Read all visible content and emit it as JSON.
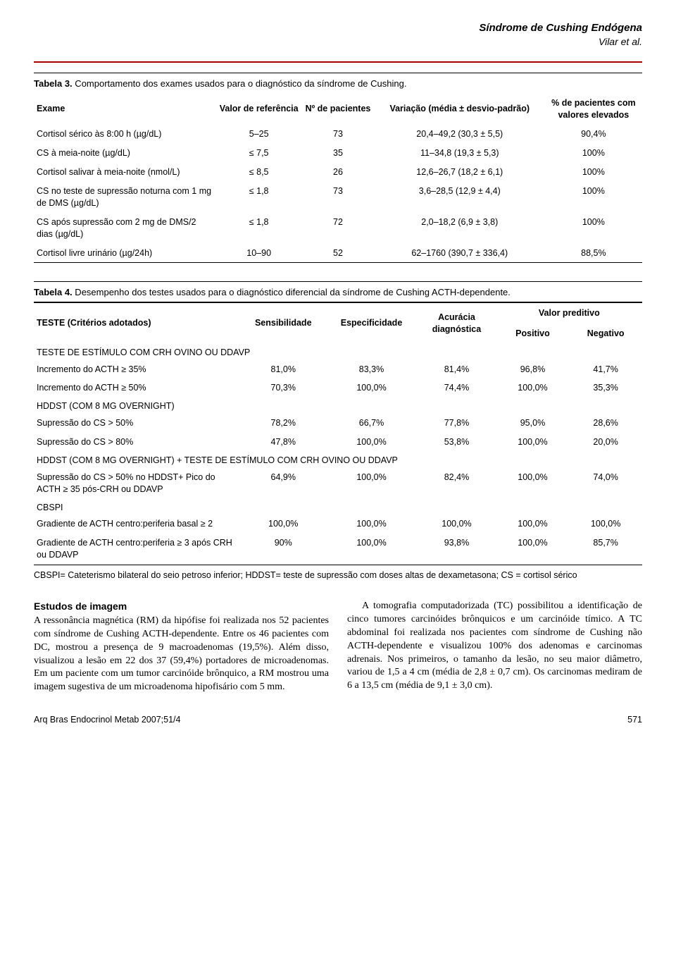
{
  "header": {
    "title": "Síndrome de Cushing Endógena",
    "authors": "Vilar et al."
  },
  "table3": {
    "caption_bold": "Tabela 3.",
    "caption_rest": " Comportamento dos exames usados para o diagnóstico da síndrome de Cushing.",
    "headers": {
      "exame": "Exame",
      "valor": "Valor de referência",
      "n": "Nº de pacientes",
      "variacao": "Variação (média ± desvio-padrão)",
      "pct": "% de pacientes com valores elevados"
    },
    "rows": [
      {
        "exame": "Cortisol sérico às 8:00 h (µg/dL)",
        "valor": "5–25",
        "n": "73",
        "var": "20,4–49,2 (30,3 ± 5,5)",
        "pct": "90,4%"
      },
      {
        "exame": "CS à meia-noite (µg/dL)",
        "valor": "≤ 7,5",
        "n": "35",
        "var": "11–34,8 (19,3 ± 5,3)",
        "pct": "100%"
      },
      {
        "exame": "Cortisol salivar à meia-noite (nmol/L)",
        "valor": "≤ 8,5",
        "n": "26",
        "var": "12,6–26,7 (18,2 ± 6,1)",
        "pct": "100%"
      },
      {
        "exame": "CS no teste de supressão noturna com 1 mg de DMS (µg/dL)",
        "valor": "≤ 1,8",
        "n": "73",
        "var": "3,6–28,5 (12,9 ± 4,4)",
        "pct": "100%"
      },
      {
        "exame": "CS após supressão com 2 mg de DMS/2 dias (µg/dL)",
        "valor": "≤ 1,8",
        "n": "72",
        "var": "2,0–18,2 (6,9 ± 3,8)",
        "pct": "100%"
      },
      {
        "exame": "Cortisol livre urinário (µg/24h)",
        "valor": "10–90",
        "n": "52",
        "var": "62–1760 (390,7 ± 336,4)",
        "pct": "88,5%"
      }
    ]
  },
  "table4": {
    "caption_bold": "Tabela 4.",
    "caption_rest": " Desempenho dos testes usados para o diagnóstico diferencial da síndrome de Cushing ACTH-dependente.",
    "headers": {
      "teste": "TESTE (Critérios adotados)",
      "sens": "Sensibilidade",
      "espec": "Especificidade",
      "acur": "Acurácia diagnóstica",
      "vp": "Valor preditivo",
      "pos": "Positivo",
      "neg": "Negativo"
    },
    "sections": [
      {
        "title": "TESTE DE ESTÍMULO COM CRH OVINO OU DDAVP",
        "rows": [
          {
            "t": "Incremento do ACTH ≥ 35%",
            "s": "81,0%",
            "e": "83,3%",
            "a": "81,4%",
            "p": "96,8%",
            "n": "41,7%"
          },
          {
            "t": "Incremento do ACTH ≥ 50%",
            "s": "70,3%",
            "e": "100,0%",
            "a": "74,4%",
            "p": "100,0%",
            "n": "35,3%"
          }
        ]
      },
      {
        "title": "HDDST (COM 8 MG OVERNIGHT)",
        "rows": [
          {
            "t": "Supressão do CS > 50%",
            "s": "78,2%",
            "e": "66,7%",
            "a": "77,8%",
            "p": "95,0%",
            "n": "28,6%"
          },
          {
            "t": "Supressão do CS > 80%",
            "s": "47,8%",
            "e": "100,0%",
            "a": "53,8%",
            "p": "100,0%",
            "n": "20,0%"
          }
        ]
      },
      {
        "title": "HDDST (COM 8 MG OVERNIGHT) + TESTE DE ESTÍMULO COM CRH OVINO OU DDAVP",
        "rows": [
          {
            "t": "Supressão do CS > 50% no HDDST+ Pico do ACTH ≥ 35 pós-CRH ou DDAVP",
            "s": "64,9%",
            "e": "100,0%",
            "a": "82,4%",
            "p": "100,0%",
            "n": "74,0%"
          }
        ]
      },
      {
        "title": "CBSPI",
        "rows": [
          {
            "t": "Gradiente de ACTH centro:periferia basal ≥ 2",
            "s": "100,0%",
            "e": "100,0%",
            "a": "100,0%",
            "p": "100,0%",
            "n": "100,0%"
          },
          {
            "t": "Gradiente de ACTH centro:periferia ≥ 3 após CRH ou DDAVP",
            "s": "90%",
            "e": "100,0%",
            "a": "93,8%",
            "p": "100,0%",
            "n": "85,7%"
          }
        ]
      }
    ],
    "note": "CBSPI= Cateterismo bilateral do seio petroso inferior; HDDST= teste de supressão com doses altas de dexametasona; CS = cortisol sérico"
  },
  "body": {
    "left_heading": "Estudos de imagem",
    "left_text": "A ressonância magnética (RM) da hipófise foi realizada nos 52 pacientes com síndrome de Cushing ACTH-dependente. Entre os 46 pacientes com DC, mostrou a presença de 9 macroadenomas (19,5%). Além disso, visualizou a lesão em 22 dos 37 (59,4%) portadores de microadenomas. Em um paciente com um tumor carcinóide brônquico, a RM mostrou uma imagem sugestiva de um microadenoma hipofisário com 5 mm.",
    "right_text": "A tomografia computadorizada (TC) possibilitou a identificação de cinco tumores carcinóides brônquicos e um carcinóide tímico. A TC abdominal foi realizada nos pacientes com síndrome de Cushing não ACTH-dependente e visualizou 100% dos adenomas e carcinomas adrenais. Nos primeiros, o tamanho da lesão, no seu maior diâmetro, variou de 1,5 a 4 cm (média de 2,8 ± 0,7 cm). Os carcinomas mediram de 6 a 13,5 cm (média de 9,1 ± 3,0 cm)."
  },
  "footer": {
    "journal": "Arq Bras Endocrinol Metab 2007;51/4",
    "page": "571"
  }
}
